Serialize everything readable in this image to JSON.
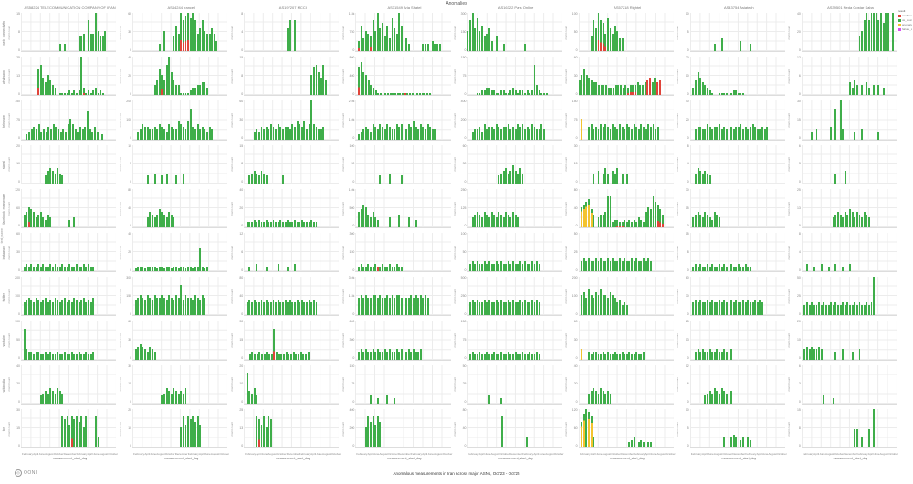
{
  "chart_data": {
    "type": "bar",
    "title": "Anomalies",
    "caption": "Anomalous measurements in Iran across major ASNs, Oct'23 - Oct'25",
    "xlabel": "measurement_start_day",
    "panel_ylabel": "msmt count",
    "left_dim_label": "test_name",
    "x_months": [
      "February",
      "April",
      "June",
      "August",
      "October",
      "December",
      "February",
      "April",
      "June",
      "August",
      "October"
    ],
    "colors": {
      "ok": "#3fae4a",
      "confirmed": "#e0443a",
      "anomaly": "#f3c32e",
      "failure": "#d94ff0",
      "grid": "#ececec"
    },
    "legend": {
      "title": "result",
      "items": [
        {
          "label": "confirmed_count",
          "color_key": "confirmed"
        },
        {
          "label": "ok_count",
          "color_key": "ok"
        },
        {
          "label": "anomaly_count",
          "color_key": "anomaly"
        },
        {
          "label": "failure_count",
          "color_key": "failure"
        }
      ]
    },
    "facet": {
      "columns": [
        "AS58224 TELECOMMUNICATION COMPANY OF IRAN",
        "AS44244 Irancell",
        "AS197207 MCCI",
        "AS31549 Aria Shatel",
        "AS16322 Pars Online",
        "AS57218 Rightel",
        "AS43754 Asiatech",
        "AS39501 Neda Gostar Saba"
      ],
      "rows": [
        "web_connectivity",
        "whatsapp",
        "telegram",
        "signal",
        "facebook_messenger",
        "instagram",
        "twitter",
        "youtube",
        "wikipedia",
        "tor"
      ]
    },
    "height_encoding": "each char of h is a hex digit 0-f = bar height as fraction of panel y-max; c maps bar index to color code g=ok r=confirmed y=anomaly m=failure G=ok-with-confirmed-base Y=anomaly-with-ok-top",
    "panels": [
      {
        "yt": [
          "15",
          "8",
          "0"
        ],
        "h": "0000000000000000303000006670c77f86680c00",
        "c": {}
      },
      {
        "yt": [
          "60",
          "30",
          "0"
        ],
        "h": "000000000003080006a7fcefdfc79c8779740000",
        "c": {
          "20": "G",
          "21": "G",
          "22": "G",
          "23": "G"
        }
      },
      {
        "yt": [
          "8",
          "4",
          "0"
        ],
        "h": "0000000000000000009c0c000000000000000000",
        "c": {}
      },
      {
        "yt": [
          "1.5k",
          "750",
          "0"
        ],
        "h": "04a5876c8f9b6a5d97fa75300000333043330000",
        "c": {
          "1": "G",
          "6": "G"
        }
      },
      {
        "yt": [
          "300",
          "150",
          "0"
        ],
        "h": "8cf9d8a679406003000000003000000000000000",
        "c": {}
      },
      {
        "yt": [
          "100",
          "50",
          "0"
        ],
        "h": "000006c9fcb7d97a855000000000000000000000",
        "c": {
          "8": "G",
          "9": "G",
          "10": "G",
          "11": "G"
        }
      },
      {
        "yt": [
          "10",
          "5",
          "0"
        ],
        "h": "0000000000300500000004000300000000000000",
        "c": {}
      },
      {
        "yt": [
          "40",
          "20",
          "0"
        ],
        "h": "00000000000000000000000068cfcfffcfbff0f0",
        "c": {}
      },
      {
        "yt": [
          "25",
          "13",
          "0"
        ],
        "h": "0000000ac7586430111121212f31212312100000",
        "c": {
          "7": "G",
          "26": "G"
        }
      },
      {
        "yt": [
          "40",
          "20",
          "0"
        ],
        "h": "00000000046a86cf964411112334455300000000",
        "c": {
          "12": "G"
        }
      },
      {
        "yt": [
          "15",
          "8",
          "0"
        ],
        "h": "00000000000000000000000000008bc97c600000",
        "c": {}
      },
      {
        "yt": [
          "800",
          "400",
          "0"
        ],
        "h": "0bd98643211011111111111121111110000 0000",
        "c": {
          "1": "G",
          "20": "r"
        }
      },
      {
        "yt": [
          "150",
          "75",
          "0"
        ],
        "h": "0000112233221122112321221212c42111000000",
        "c": {}
      },
      {
        "yt": [
          "60",
          "30",
          "0"
        ],
        "h": "68a87655444433344434344454456757 5600000",
        "c": {
          "20": "G",
          "21": "G",
          "22": "G",
          "23": "G",
          "28": "r",
          "29": "r",
          "32": "r",
          "33": "r"
        }
      },
      {
        "yt": [
          "20",
          "10",
          "0"
        ],
        "h": "0369754321001111212211100000000000000000",
        "c": {}
      },
      {
        "yt": [
          "12",
          "6",
          "0"
        ],
        "h": "0000000000000000000053640405304040300000",
        "c": {}
      },
      {
        "yt": [
          "150",
          "75",
          "0"
        ],
        "h": "00234546343546543436 8643545b43534200000",
        "c": {}
      },
      {
        "yt": [
          "200",
          "100",
          "0"
        ],
        "h": "003465544546543654476547c546454354000000",
        "c": {}
      },
      {
        "yt": [
          "60",
          "30",
          "0"
        ],
        "h": "0000343545465465455465765746f65445000000",
        "c": {}
      },
      {
        "yt": [
          "2.0k",
          "1.0k",
          "0"
        ],
        "h": "0234543654654654465654657546546544000000",
        "c": {}
      },
      {
        "yt": [
          "400",
          "200",
          "0"
        ],
        "h": "0034453645546545564546564546544640000000",
        "c": {}
      },
      {
        "yt": [
          "150",
          "75",
          "0"
        ],
        "h": "0800564546565465465465465465465645000000",
        "c": {
          "1": "y"
        }
      },
      {
        "yt": [
          "40",
          "20",
          "0"
        ],
        "h": "0045544654556454654556454565445450000000",
        "c": {}
      },
      {
        "yt": [
          "30",
          "15",
          "0"
        ],
        "h": "00003040000050c0f40000300400000030000000",
        "c": {}
      },
      {
        "yt": [
          "20",
          "10",
          "0"
        ],
        "h": "0000000000356546430000000000000000000000",
        "c": {}
      },
      {
        "yt": [
          "10",
          "5",
          "0"
        ],
        "h": "0000003004003040003004000000000000000000",
        "c": {}
      },
      {
        "yt": [
          "15",
          "8",
          "0"
        ],
        "h": "0034543543000000300000000000000000000000",
        "c": {}
      },
      {
        "yt": [
          "100",
          "50",
          "0"
        ],
        "h": "0000000000300040000300000000000000000000",
        "c": {}
      },
      {
        "yt": [
          "60",
          "30",
          "0"
        ],
        "h": "0000000000000345645754640000000000000000",
        "c": {}
      },
      {
        "yt": [
          "30",
          "15",
          "0"
        ],
        "h": "0000004050464054604040000000000000000000",
        "c": {}
      },
      {
        "yt": [
          "8",
          "4",
          "0"
        ],
        "h": "0046545430000000000000000000000000000000",
        "c": {}
      },
      {
        "yt": [
          "6",
          "3",
          "0"
        ],
        "h": "0000000000000040005000000000000000000000",
        "c": {}
      },
      {
        "yt": [
          "120",
          "60",
          "0"
        ],
        "h": "0568764564354000000030400000000000000000",
        "c": {
          "3": "G"
        }
      },
      {
        "yt": [
          "80",
          "40",
          "0"
        ],
        "h": "0000004654576546540000000000000000000000",
        "c": {}
      },
      {
        "yt": [
          "40",
          "20",
          "0"
        ],
        "h": "0222323223223223223223223222322000000000",
        "c": {}
      },
      {
        "yt": [
          "1.0k",
          "500",
          "0"
        ],
        "h": "0679854643000040005000400300000000000000",
        "c": {}
      },
      {
        "yt": [
          "250",
          "125",
          "0"
        ],
        "h": "0045654654654654654654000000000000000000",
        "c": {}
      },
      {
        "yt": [
          "80",
          "40",
          "0"
        ],
        "h": "089ab7504556cc2332232323243 2687ca9750000",
        "c": {
          "1": "Y",
          "2": "Y",
          "3": "Y",
          "4": "Y",
          "5": "Y",
          "16": "G",
          "17": "G",
          "18": "G",
          "33": "G",
          "34": "G",
          "35": "G"
        }
      },
      {
        "yt": [
          "30",
          "15",
          "0"
        ],
        "h": "0456546543654000000000000000000000000000",
        "c": {}
      },
      {
        "yt": [
          "25",
          "13",
          "0"
        ],
        "h": "0000000000000456546576465465400000000000",
        "c": {}
      },
      {
        "yt": [
          "60",
          "30",
          "0"
        ],
        "h": "0232322323223232232232232232322000000000",
        "c": {}
      },
      {
        "yt": [
          "40",
          "20",
          "0"
        ],
        "h": "0122212222122122122122122122921200000000",
        "c": {}
      },
      {
        "yt": [
          "12",
          "6",
          "0"
        ],
        "h": "0020030002000030002003000000000000000000",
        "c": {}
      },
      {
        "yt": [
          "300",
          "150",
          "0"
        ],
        "h": "0232232232232232232200000000000000000000",
        "c": {
          "9": "r"
        }
      },
      {
        "yt": [
          "100",
          "50",
          "0"
        ],
        "h": "0343433434334343343433434334343000000000",
        "c": {}
      },
      {
        "yt": [
          "50",
          "25",
          "0"
        ],
        "h": "0454544545445454454544545445454000000000",
        "c": {}
      },
      {
        "yt": [
          "15",
          "8",
          "0"
        ],
        "h": "0232322323223232232232232200000000000000",
        "c": {}
      },
      {
        "yt": [
          "8",
          "4",
          "0"
        ],
        "h": "0030020030020030020030000000000000000000",
        "c": {}
      },
      {
        "yt": [
          "200",
          "100",
          "0"
        ],
        "h": "0567657656756576567565765675657000000000",
        "c": {}
      },
      {
        "yt": [
          "300",
          "150",
          "0"
        ],
        "h": "06787687687787687687c6877687687000000000",
        "c": {}
      },
      {
        "yt": [
          "80",
          "40",
          "0"
        ],
        "h": "0565655656556565565655656556565000000000",
        "c": {}
      },
      {
        "yt": [
          "3.0k",
          "1.5k",
          "0"
        ],
        "h": "0787877887877878788787787878787000000000",
        "c": {}
      },
      {
        "yt": [
          "500",
          "250",
          "0"
        ],
        "h": "0565655656556565565655656556565000000000",
        "c": {}
      },
      {
        "yt": [
          "200",
          "100",
          "0"
        ],
        "h": "0897a8798a8879875645400000000000 00000000",
        "c": {}
      },
      {
        "yt": [
          "60",
          "30",
          "0"
        ],
        "h": "0565655656556565565655656556565000000000",
        "c": {}
      },
      {
        "yt": [
          "50",
          "25",
          "0"
        ],
        "h": "04545445454454544545445454454 5f000000000",
        "c": {}
      },
      {
        "yt": [
          "100",
          "50",
          "0"
        ],
        "h": "0c43323322323223223223223223223000000000",
        "c": {}
      },
      {
        "yt": [
          "60",
          "30",
          "0"
        ],
        "h": "0456543543000000000000000000000000000000",
        "c": {}
      },
      {
        "yt": [
          "30",
          "15",
          "0"
        ],
        "h": "00232232232 2c32223223223223000000000000",
        "c": {
          "12": "G"
        }
      },
      {
        "yt": [
          "600",
          "300",
          "0"
        ],
        "h": "0343433434334343343433434334000000000000",
        "c": {}
      },
      {
        "yt": [
          "150",
          "75",
          "0"
        ],
        "h": "0232232232232232232232232232232000000000",
        "c": {}
      },
      {
        "yt": [
          "60",
          "30",
          "0"
        ],
        "h": "0400323322323223223223223223000000000000",
        "c": {
          "1": "y"
        }
      },
      {
        "yt": [
          "25",
          "13",
          "0"
        ],
        "h": "0034343343343343340000000000000000000000",
        "c": {}
      },
      {
        "yt": [
          "20",
          "10",
          "0"
        ],
        "h": "0454544540000030040003004000000000000000",
        "c": {}
      },
      {
        "yt": [
          "40",
          "20",
          "0"
        ],
        "h": "0000000034546546540000000000000000000000",
        "c": {}
      },
      {
        "yt": [
          "30",
          "15",
          "0"
        ],
        "h": "0000000000003465465454600000000000000000",
        "c": {}
      },
      {
        "yt": [
          "20",
          "10",
          "0"
        ],
        "h": "0c54630000000000000000000000000000000000",
        "c": {}
      },
      {
        "yt": [
          "150",
          "75",
          "0"
        ],
        "h": "0000003002000300200000000000000000000000",
        "c": {}
      },
      {
        "yt": [
          "50",
          "25",
          "0"
        ],
        "h": "0000000003000020000000000000000000000000",
        "c": {}
      },
      {
        "yt": [
          "40",
          "20",
          "0"
        ],
        "h": "0000456546545400000000000000000000000000",
        "c": {}
      },
      {
        "yt": [
          "12",
          "6",
          "0"
        ],
        "h": "0000003454654654650000000000000000000000",
        "c": {}
      },
      {
        "yt": [
          "6",
          "3",
          "0"
        ],
        "h": "0000000003000200000000000000000000000000",
        "c": {}
      },
      {
        "yt": [
          "30",
          "15",
          "0"
        ],
        "h": "00000000000000000cbc9cbcac8c000c40000000",
        "c": {
          "21": "G"
        }
      },
      {
        "yt": [
          "20",
          "10",
          "0"
        ],
        "h": "000000000000000000008c9cbcac900000000000",
        "c": {}
      },
      {
        "yt": [
          "25",
          "13",
          "0"
        ],
        "h": "00000cb9c8cb0000000000000000000000000000",
        "c": {
          "6": "G"
        }
      },
      {
        "yt": [
          "400",
          "200",
          "0"
        ],
        "h": "00008cac9ca00000000000000000000000000000",
        "c": {}
      },
      {
        "yt": [
          "80",
          "40",
          "0"
        ],
        "h": "000000000000 00c000000000400000000000000",
        "c": {}
      },
      {
        "yt": [
          "120",
          "60",
          "0"
        ],
        "h": "0adfec4000000000000002340232022000000000",
        "c": {
          "1": "Y",
          "2": "Y",
          "4": "Y",
          "5": "Y"
        }
      },
      {
        "yt": [
          "10",
          "5",
          "0"
        ],
        "h": "0000000000000040045403404300000000000000",
        "c": {}
      },
      {
        "yt": [
          "15",
          "8",
          "0"
        ],
        "h": "000000000000000000000077040070f000000000",
        "c": {
          "24": "m"
        }
      }
    ]
  },
  "branding": {
    "logo_text": "OONI"
  }
}
